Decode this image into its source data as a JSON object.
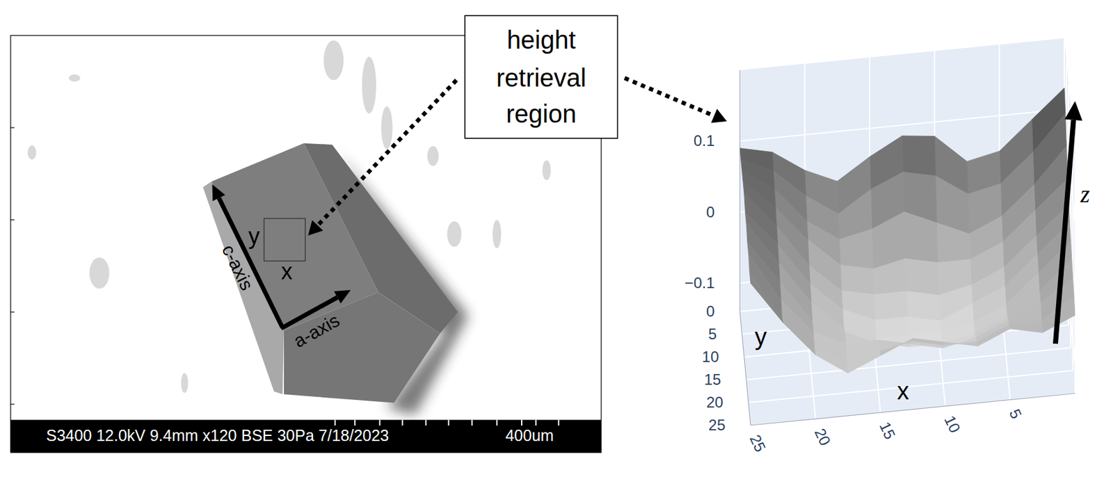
{
  "figure": {
    "sem_image": {
      "info_bar": "S3400 12.0kV 9.4mm x120 BSE 30Pa 7/18/2023",
      "scale_bar": "400um",
      "c_axis_label": "c-axis",
      "a_axis_label": "a-axis",
      "region_x_label": "x",
      "region_y_label": "y"
    },
    "callout": {
      "lines": [
        "height",
        "retrieval",
        "region"
      ]
    }
  },
  "chart_data": {
    "type": "surface",
    "x": [
      0,
      2.5,
      5,
      7.5,
      10,
      12.5,
      15,
      17.5,
      20,
      22.5,
      25
    ],
    "y": [
      0,
      2.5,
      5,
      7.5,
      10,
      12.5,
      15,
      17.5,
      20,
      22.5,
      25
    ],
    "z": [
      [
        0.13,
        0.09,
        0.05,
        0.04,
        0.08,
        0.085,
        0.06,
        0.03,
        0.05,
        0.08,
        0.09
      ],
      [
        0.11,
        0.06,
        0.02,
        0.01,
        0.04,
        0.05,
        0.03,
        0.0,
        0.03,
        0.07,
        0.09
      ],
      [
        0.08,
        0.03,
        -0.01,
        -0.03,
        -0.01,
        0.01,
        -0.01,
        -0.02,
        0.01,
        0.06,
        0.09
      ],
      [
        0.05,
        0.01,
        -0.03,
        -0.05,
        -0.05,
        -0.04,
        -0.05,
        -0.04,
        0.0,
        0.05,
        0.09
      ],
      [
        0.03,
        -0.01,
        -0.05,
        -0.07,
        -0.08,
        -0.07,
        -0.07,
        -0.06,
        -0.02,
        0.04,
        0.09
      ],
      [
        0.02,
        -0.02,
        -0.06,
        -0.08,
        -0.1,
        -0.09,
        -0.09,
        -0.07,
        -0.03,
        0.03,
        0.08
      ],
      [
        0.01,
        -0.03,
        -0.07,
        -0.09,
        -0.1,
        -0.1,
        -0.1,
        -0.08,
        -0.04,
        0.02,
        0.08
      ],
      [
        0.0,
        -0.04,
        -0.07,
        -0.09,
        -0.1,
        -0.1,
        -0.09,
        -0.07,
        -0.05,
        0.01,
        0.07
      ],
      [
        -0.01,
        -0.04,
        -0.06,
        -0.08,
        -0.09,
        -0.08,
        -0.07,
        -0.07,
        -0.05,
        0.0,
        0.07
      ],
      [
        -0.02,
        -0.05,
        -0.05,
        -0.07,
        -0.07,
        -0.06,
        -0.07,
        -0.08,
        -0.06,
        -0.01,
        0.06
      ],
      [
        -0.03,
        -0.05,
        -0.04,
        -0.06,
        -0.05,
        -0.04,
        -0.06,
        -0.08,
        -0.05,
        0.0,
        0.06
      ]
    ],
    "xlim": [
      0,
      25
    ],
    "ylim": [
      0,
      25
    ],
    "zlim": [
      -0.14,
      0.2
    ],
    "xticks": [
      5,
      10,
      15,
      20,
      25
    ],
    "yticks": [
      0,
      5,
      10,
      15,
      20,
      25
    ],
    "zticks": [
      {
        "value": -0.1,
        "label": "−0.1"
      },
      0,
      0.1
    ],
    "x_label": "x",
    "y_label": "y",
    "z_label": "z",
    "grid": true
  }
}
